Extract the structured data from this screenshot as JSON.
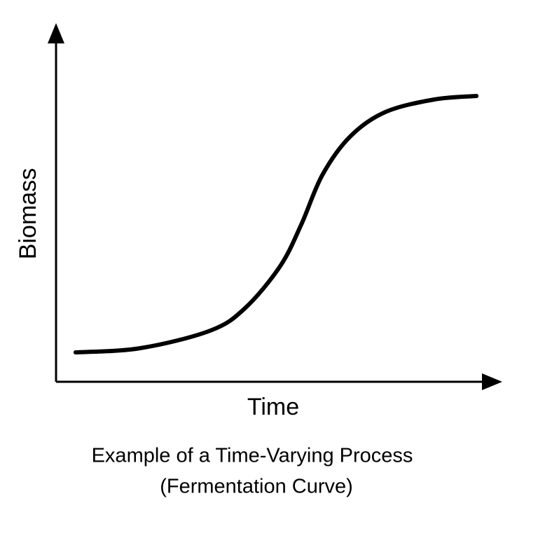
{
  "chart_data": {
    "type": "line",
    "caption": [
      "Example of a Time-Varying Process",
      "(Fermentation Curve)"
    ],
    "x_label": "Time",
    "y_label": "Biomass",
    "xlim": [
      0,
      100
    ],
    "ylim": [
      0,
      100
    ],
    "x": [
      4.5,
      19.4,
      35.5,
      43.5,
      51.6,
      56.5,
      61.3,
      67.7,
      75.8,
      87.1,
      96.8
    ],
    "series": [
      {
        "color": "#000000",
        "values": [
          8.4,
          9.6,
          14.6,
          21,
          33,
          45,
          59,
          70,
          77,
          80.6,
          81.6
        ]
      }
    ]
  }
}
